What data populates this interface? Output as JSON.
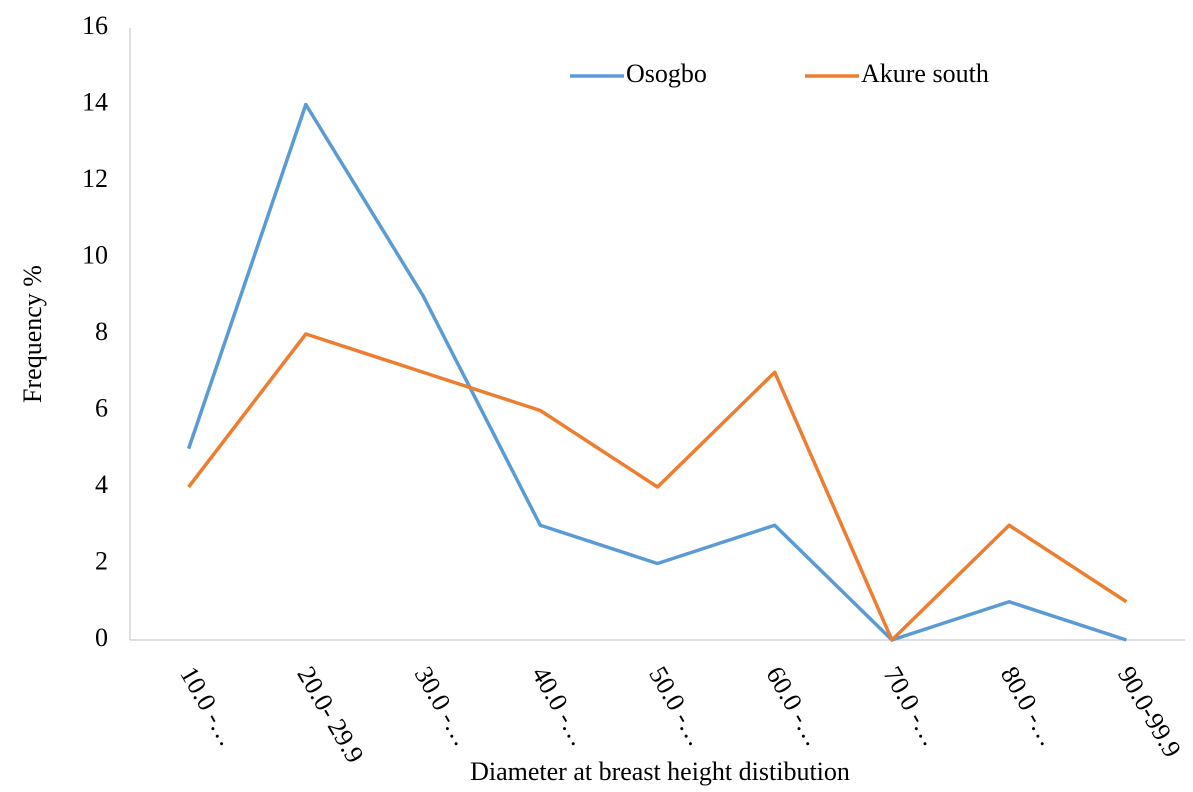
{
  "chart_data": {
    "type": "line",
    "xlabel": "Diameter at breast height distibution",
    "ylabel": "Frequency %",
    "categories": [
      "10.0 -…",
      "20.0- 29.9",
      "30.0 -…",
      "40.0 -…",
      "50.0 -…",
      "60.0 -…",
      "70.0 -…",
      "80.0 -…",
      "90.0-99.9"
    ],
    "series": [
      {
        "name": "Osogbo",
        "color": "#5b9bd5",
        "values": [
          5,
          14,
          9,
          3,
          2,
          3,
          0,
          1,
          0
        ]
      },
      {
        "name": "Akure south",
        "color": "#ed7d31",
        "values": [
          4,
          8,
          7,
          6,
          4,
          7,
          0,
          3,
          1
        ]
      }
    ],
    "ylim": [
      0,
      16
    ],
    "yticks": [
      0,
      2,
      4,
      6,
      8,
      10,
      12,
      14,
      16
    ],
    "grid": false,
    "legend": "top"
  }
}
